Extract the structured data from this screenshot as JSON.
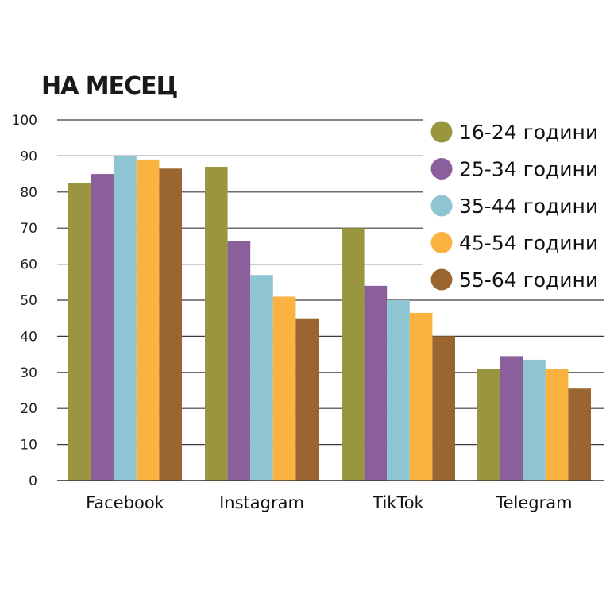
{
  "chart_data": {
    "type": "bar",
    "title": "НА МЕСЕЦ",
    "xlabel": "",
    "ylabel": "",
    "ylim": [
      0,
      100
    ],
    "yticks": [
      0,
      10,
      20,
      30,
      40,
      50,
      60,
      70,
      80,
      90,
      100
    ],
    "categories": [
      "Facebook",
      "Instagram",
      "TikTok",
      "Telegram"
    ],
    "legend_position": "top-right",
    "grid": true,
    "series": [
      {
        "name": "16-24 години",
        "color": "#9a963f",
        "values": [
          82.5,
          87,
          70,
          31
        ]
      },
      {
        "name": "25-34 години",
        "color": "#8a5f9b",
        "values": [
          85,
          66.5,
          54,
          34.5
        ]
      },
      {
        "name": "35-44 години",
        "color": "#8fc5d3",
        "values": [
          90,
          57,
          50,
          33.5
        ]
      },
      {
        "name": "45-54 години",
        "color": "#fab240",
        "values": [
          89,
          51,
          46.5,
          31
        ]
      },
      {
        "name": "55-64 години",
        "color": "#9a6530",
        "values": [
          86.5,
          45,
          40,
          25.5
        ]
      }
    ]
  }
}
